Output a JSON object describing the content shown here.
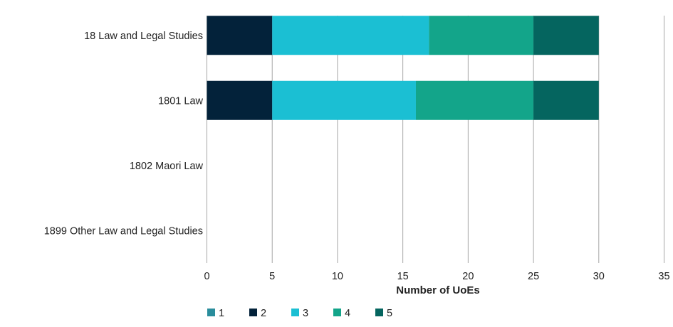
{
  "chart_data": {
    "type": "bar",
    "orientation": "horizontal",
    "stacked": true,
    "categories": [
      "18 Law and Legal Studies",
      "1801 Law",
      "1802 Maori Law",
      "1899 Other Law and Legal Studies"
    ],
    "series": [
      {
        "name": "1",
        "color": "#2a8d9c",
        "values": [
          0,
          0,
          0,
          0
        ]
      },
      {
        "name": "2",
        "color": "#03223a",
        "values": [
          5,
          5,
          0,
          0
        ]
      },
      {
        "name": "3",
        "color": "#1bbfd3",
        "values": [
          12,
          11,
          0,
          0
        ]
      },
      {
        "name": "4",
        "color": "#13a58a",
        "values": [
          8,
          9,
          0,
          0
        ]
      },
      {
        "name": "5",
        "color": "#05655f",
        "values": [
          5,
          5,
          0,
          0
        ]
      }
    ],
    "xlabel": "Number of UoEs",
    "xlim": [
      0,
      35
    ],
    "xticks": [
      0,
      5,
      10,
      15,
      20,
      25,
      30,
      35
    ],
    "grid": "vertical",
    "legend_position": "bottom-left"
  }
}
